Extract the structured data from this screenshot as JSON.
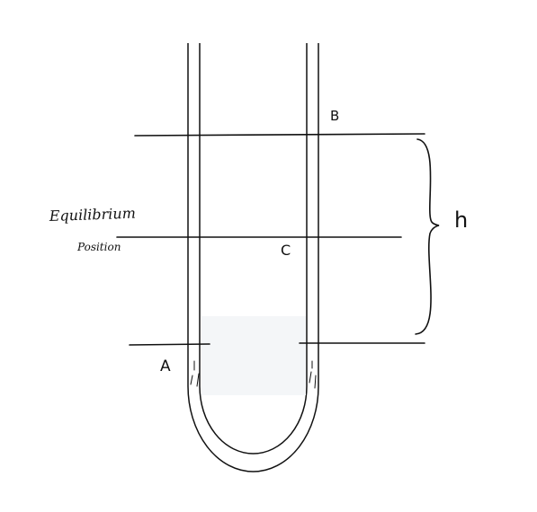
{
  "diagram": {
    "labels": {
      "b": "B",
      "c": "C",
      "a": "A",
      "h": "h",
      "equilibrium_line1": "Equilibrium",
      "equilibrium_line2": "Position"
    }
  }
}
